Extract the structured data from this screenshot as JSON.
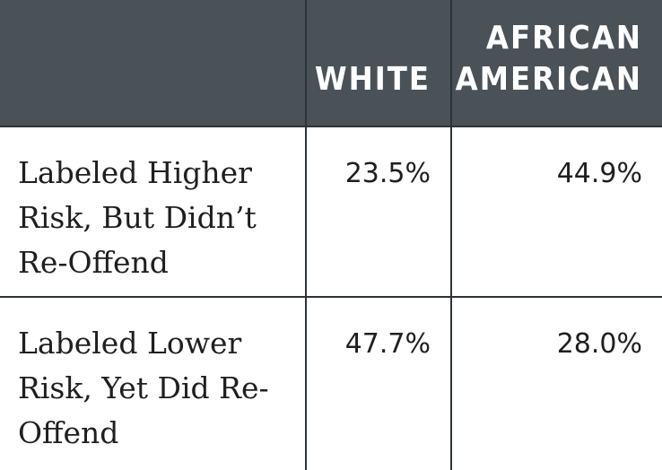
{
  "table": {
    "header": {
      "corner": "",
      "white": "WHITE",
      "african_american_line1": "AFRICAN",
      "african_american_line2": "AMERICAN"
    },
    "rows": [
      {
        "label": "Labeled Higher Risk, But Didn’t Re-Offend",
        "white": "23.5%",
        "african_american": "44.9%"
      },
      {
        "label": "Labeled Lower Risk, Yet Did Re-Offend",
        "white": "47.7%",
        "african_american": "28.0%"
      }
    ]
  },
  "colors": {
    "header_bg": "#4a5157",
    "header_text": "#ffffff",
    "grid_line": "#2e3337",
    "body_text": "#1f1f1f"
  }
}
